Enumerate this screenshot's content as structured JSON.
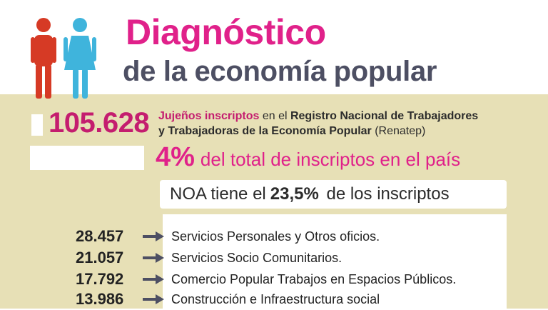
{
  "colors": {
    "title_pink": "#e0218a",
    "number_pink": "#c41d6f",
    "subtitle_gray": "#4d4f63",
    "beige": "#e7e0b6",
    "arrow_gray": "#4d4f63",
    "man_red": "#d63a25",
    "woman_blue": "#3fb4dc"
  },
  "icons": {
    "man": "man-figure-icon",
    "woman": "woman-figure-icon",
    "arrow": "arrow-right-icon"
  },
  "header": {
    "title": "Diagnóstico",
    "subtitle": "de la economía popular"
  },
  "registry": {
    "count": "105.628",
    "segments": [
      {
        "text": "Jujeños inscriptos",
        "style": "pink"
      },
      {
        "text": " en el ",
        "style": "plain"
      },
      {
        "text": "Registro Nacional de Trabajadores",
        "style": "bold"
      },
      {
        "text": " y Trabajadoras de la Economía Popular",
        "style": "bold"
      },
      {
        "text": " (Renatep)",
        "style": "plain"
      }
    ]
  },
  "share": {
    "value": "4%",
    "text": "del total de inscriptos en el país"
  },
  "noa": {
    "prefix": "NOA tiene el",
    "value": "23,5%",
    "suffix": "de los inscriptos"
  },
  "categories": [
    {
      "count": "28.457",
      "label": "Servicios Personales y Otros oficios."
    },
    {
      "count": "21.057",
      "label": "Servicios Socio Comunitarios."
    },
    {
      "count": "17.792",
      "label": "Comercio Popular  Trabajos en Espacios Públicos."
    },
    {
      "count": "13.986",
      "label": "Construcción e Infraestructura social"
    }
  ]
}
